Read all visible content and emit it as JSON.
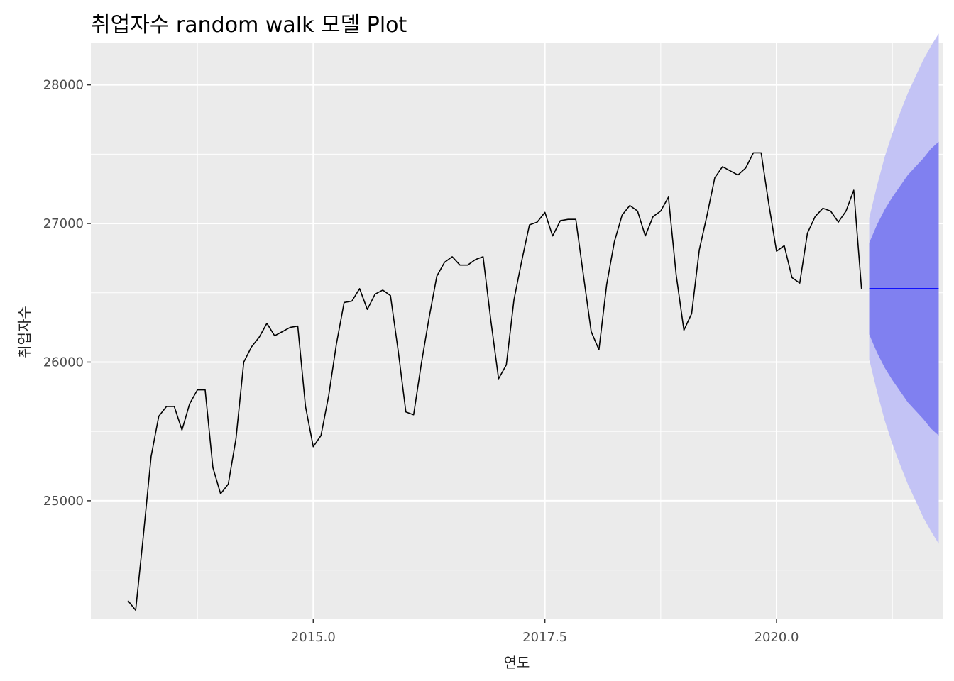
{
  "chart_data": {
    "type": "line",
    "title": "취업자수 random walk 모델 Plot",
    "xlabel": "연도",
    "ylabel": "취업자수",
    "xlim": [
      2012.6,
      2021.8
    ],
    "ylim": [
      24150,
      28300
    ],
    "x_ticks": [
      2015.0,
      2017.5,
      2020.0
    ],
    "x_tick_labels": [
      "2015.0",
      "2017.5",
      "2020.0"
    ],
    "y_ticks": [
      25000,
      26000,
      27000,
      28000
    ],
    "y_tick_labels": [
      "25000",
      "26000",
      "27000",
      "28000"
    ],
    "grid": true,
    "series": [
      {
        "type": "line",
        "color": "#000000",
        "x_start": 2013.0,
        "x_step": 0.0833333,
        "values": [
          24280,
          24210,
          24750,
          25320,
          25610,
          25680,
          25680,
          25510,
          25700,
          25800,
          25800,
          25240,
          25050,
          25120,
          25450,
          26000,
          26110,
          26180,
          26280,
          26190,
          26220,
          26250,
          26260,
          25680,
          25390,
          25470,
          25760,
          26130,
          26430,
          26440,
          26530,
          26380,
          26490,
          26520,
          26480,
          26080,
          25640,
          25620,
          25990,
          26320,
          26620,
          26720,
          26760,
          26700,
          26700,
          26740,
          26760,
          26300,
          25880,
          25980,
          26450,
          26730,
          26990,
          27010,
          27080,
          26910,
          27020,
          27030,
          27030,
          26620,
          26220,
          26090,
          26560,
          26870,
          27060,
          27130,
          27090,
          26910,
          27050,
          27090,
          27190,
          26630,
          26230,
          26350,
          26810,
          27060,
          27330,
          27410,
          27380,
          27350,
          27400,
          27510,
          27510,
          27140,
          26800,
          26840,
          26610,
          26570,
          26930,
          27050,
          27110,
          27090,
          27010,
          27090,
          27240,
          26530
        ]
      },
      {
        "type": "forecast",
        "x": [
          2021.0,
          2021.0833,
          2021.1667,
          2021.25,
          2021.3333,
          2021.4167,
          2021.5,
          2021.5833,
          2021.6667,
          2021.75
        ],
        "mean": [
          26530,
          26530,
          26530,
          26530,
          26530,
          26530,
          26530,
          26530,
          26530,
          26530
        ],
        "lo80": [
          26200,
          26070,
          25960,
          25870,
          25790,
          25710,
          25650,
          25590,
          25520,
          25470
        ],
        "hi80": [
          26860,
          26990,
          27100,
          27190,
          27270,
          27350,
          27410,
          27470,
          27540,
          27590
        ],
        "lo95": [
          26020,
          25790,
          25580,
          25410,
          25260,
          25120,
          25000,
          24880,
          24780,
          24690
        ],
        "hi95": [
          27040,
          27270,
          27480,
          27650,
          27800,
          27940,
          28060,
          28180,
          28280,
          28370
        ],
        "line_color": "#0000ff",
        "band80_color": "#8080f0",
        "band95_color": "#c3c3f5"
      }
    ]
  }
}
